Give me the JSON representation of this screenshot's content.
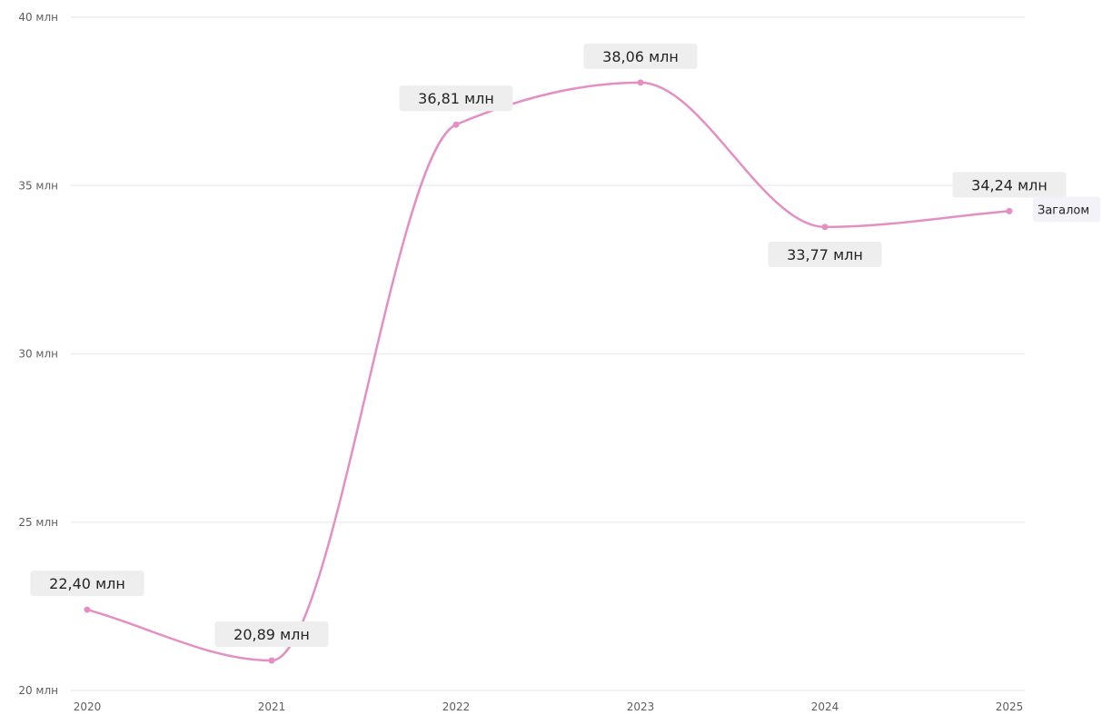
{
  "chart_data": {
    "type": "line",
    "title": "",
    "xlabel": "",
    "ylabel": "",
    "categories": [
      "2020",
      "2021",
      "2022",
      "2023",
      "2024",
      "2025"
    ],
    "y_ticks": [
      {
        "value": 20,
        "label": "20 млн"
      },
      {
        "value": 25,
        "label": "25 млн"
      },
      {
        "value": 30,
        "label": "30 млн"
      },
      {
        "value": 35,
        "label": "35 млн"
      },
      {
        "value": 40,
        "label": "40 млн"
      }
    ],
    "ylim": [
      20,
      40
    ],
    "grid": true,
    "legend": "end-of-line",
    "series": [
      {
        "name": "Загалом",
        "color": "#e48fc3",
        "values": [
          22.4,
          20.89,
          36.81,
          38.06,
          33.77,
          34.24
        ],
        "data_labels": [
          "22,40 млн",
          "20,89 млн",
          "36,81 млн",
          "38,06 млн",
          "33,77 млн",
          "34,24 млн"
        ],
        "label_positions": [
          "above",
          "above",
          "above",
          "above",
          "below",
          "above"
        ]
      }
    ],
    "colors": {
      "grid": "#eeeeee",
      "tick_text": "#605e5c",
      "label_bg": "#eeeeee",
      "series_label_bg": "#f3f2f9"
    }
  }
}
